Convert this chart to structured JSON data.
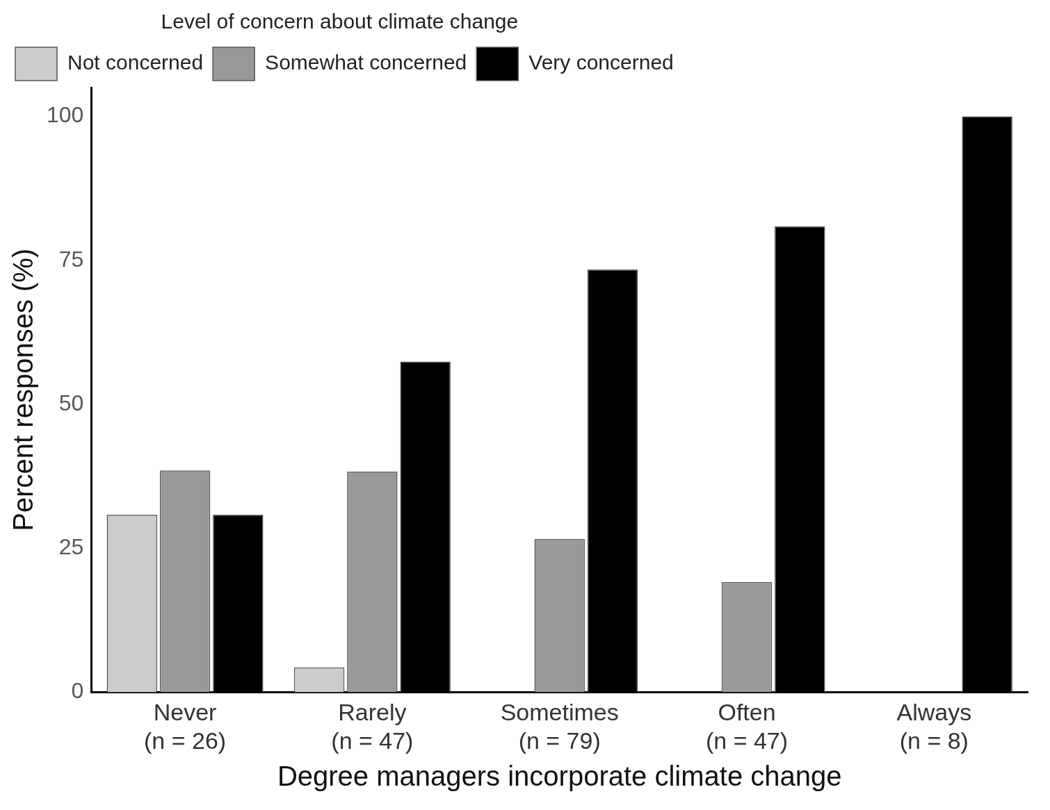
{
  "chart_data": {
    "type": "bar",
    "xlabel": "Degree managers incorporate climate change",
    "ylabel": "Percent responses (%)",
    "legend_title": "Level of concern about climate change",
    "categories": [
      "Never\n(n = 26)",
      "Rarely\n(n = 47)",
      "Sometimes\n(n = 79)",
      "Often\n(n = 47)",
      "Always\n(n = 8)"
    ],
    "series": [
      {
        "name": "Not concerned",
        "color": "#cccccc",
        "values": [
          30.8,
          4.3,
          0,
          0,
          0
        ]
      },
      {
        "name": "Somewhat concerned",
        "color": "#999999",
        "values": [
          38.5,
          38.3,
          26.6,
          19.1,
          0
        ]
      },
      {
        "name": "Very concerned",
        "color": "#000000",
        "values": [
          30.8,
          57.4,
          73.4,
          80.9,
          100
        ]
      }
    ],
    "ylim": [
      0,
      105
    ],
    "yticks": [
      0,
      25,
      50,
      75,
      100
    ],
    "grid": false,
    "legend": "top left"
  }
}
